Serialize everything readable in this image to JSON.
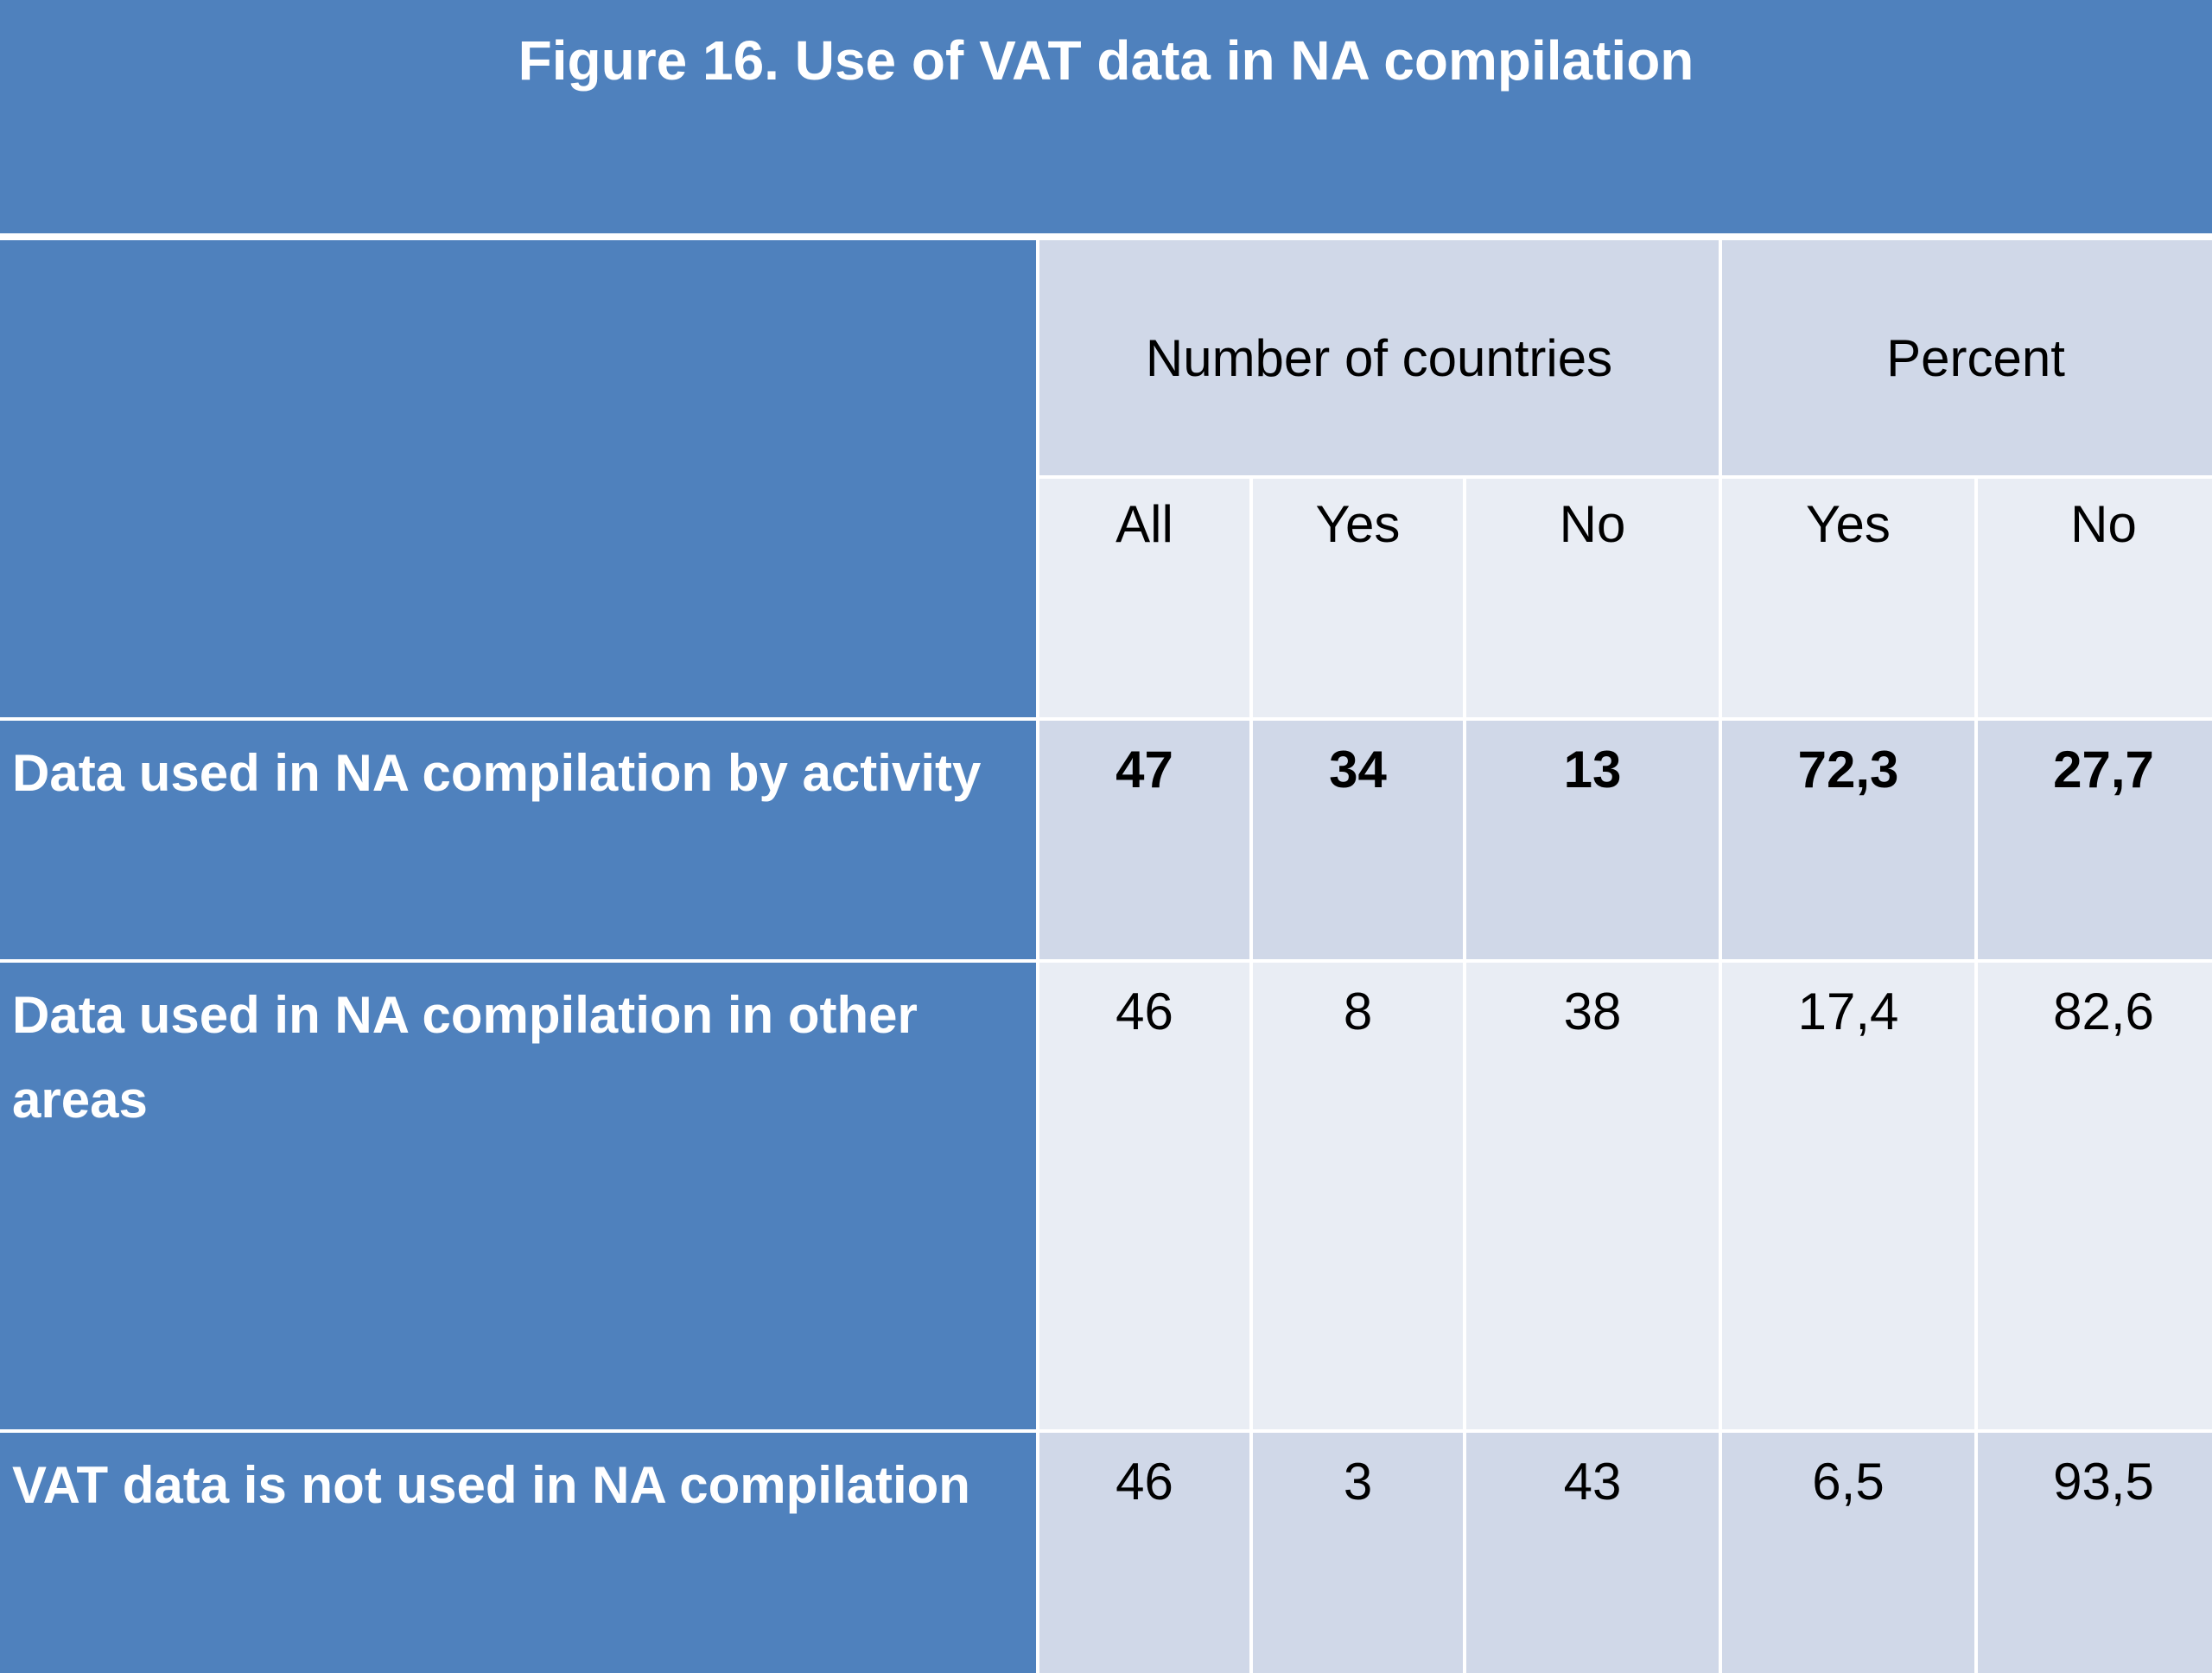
{
  "title": "Figure 16. Use of VAT data in NA compilation",
  "header": {
    "groups": [
      "Number of countries",
      "Percent"
    ],
    "subheaders": [
      "All",
      "Yes",
      "No",
      "Yes",
      "No"
    ]
  },
  "rows": [
    {
      "label": "Data used in NA compilation by activity",
      "values": [
        "47",
        "34",
        "13",
        "72,3",
        "27,7"
      ]
    },
    {
      "label": "Data used in NA compilation in other areas",
      "values": [
        "46",
        "8",
        "38",
        "17,4",
        "82,6"
      ]
    },
    {
      "label": "VAT data is not used in NA compilation",
      "values": [
        "46",
        "3",
        "43",
        "6,5",
        "93,5"
      ]
    }
  ],
  "colors": {
    "header_blue": "#4f81bd",
    "band_light": "#d0d8e8",
    "band_lighter": "#e9edf4"
  }
}
